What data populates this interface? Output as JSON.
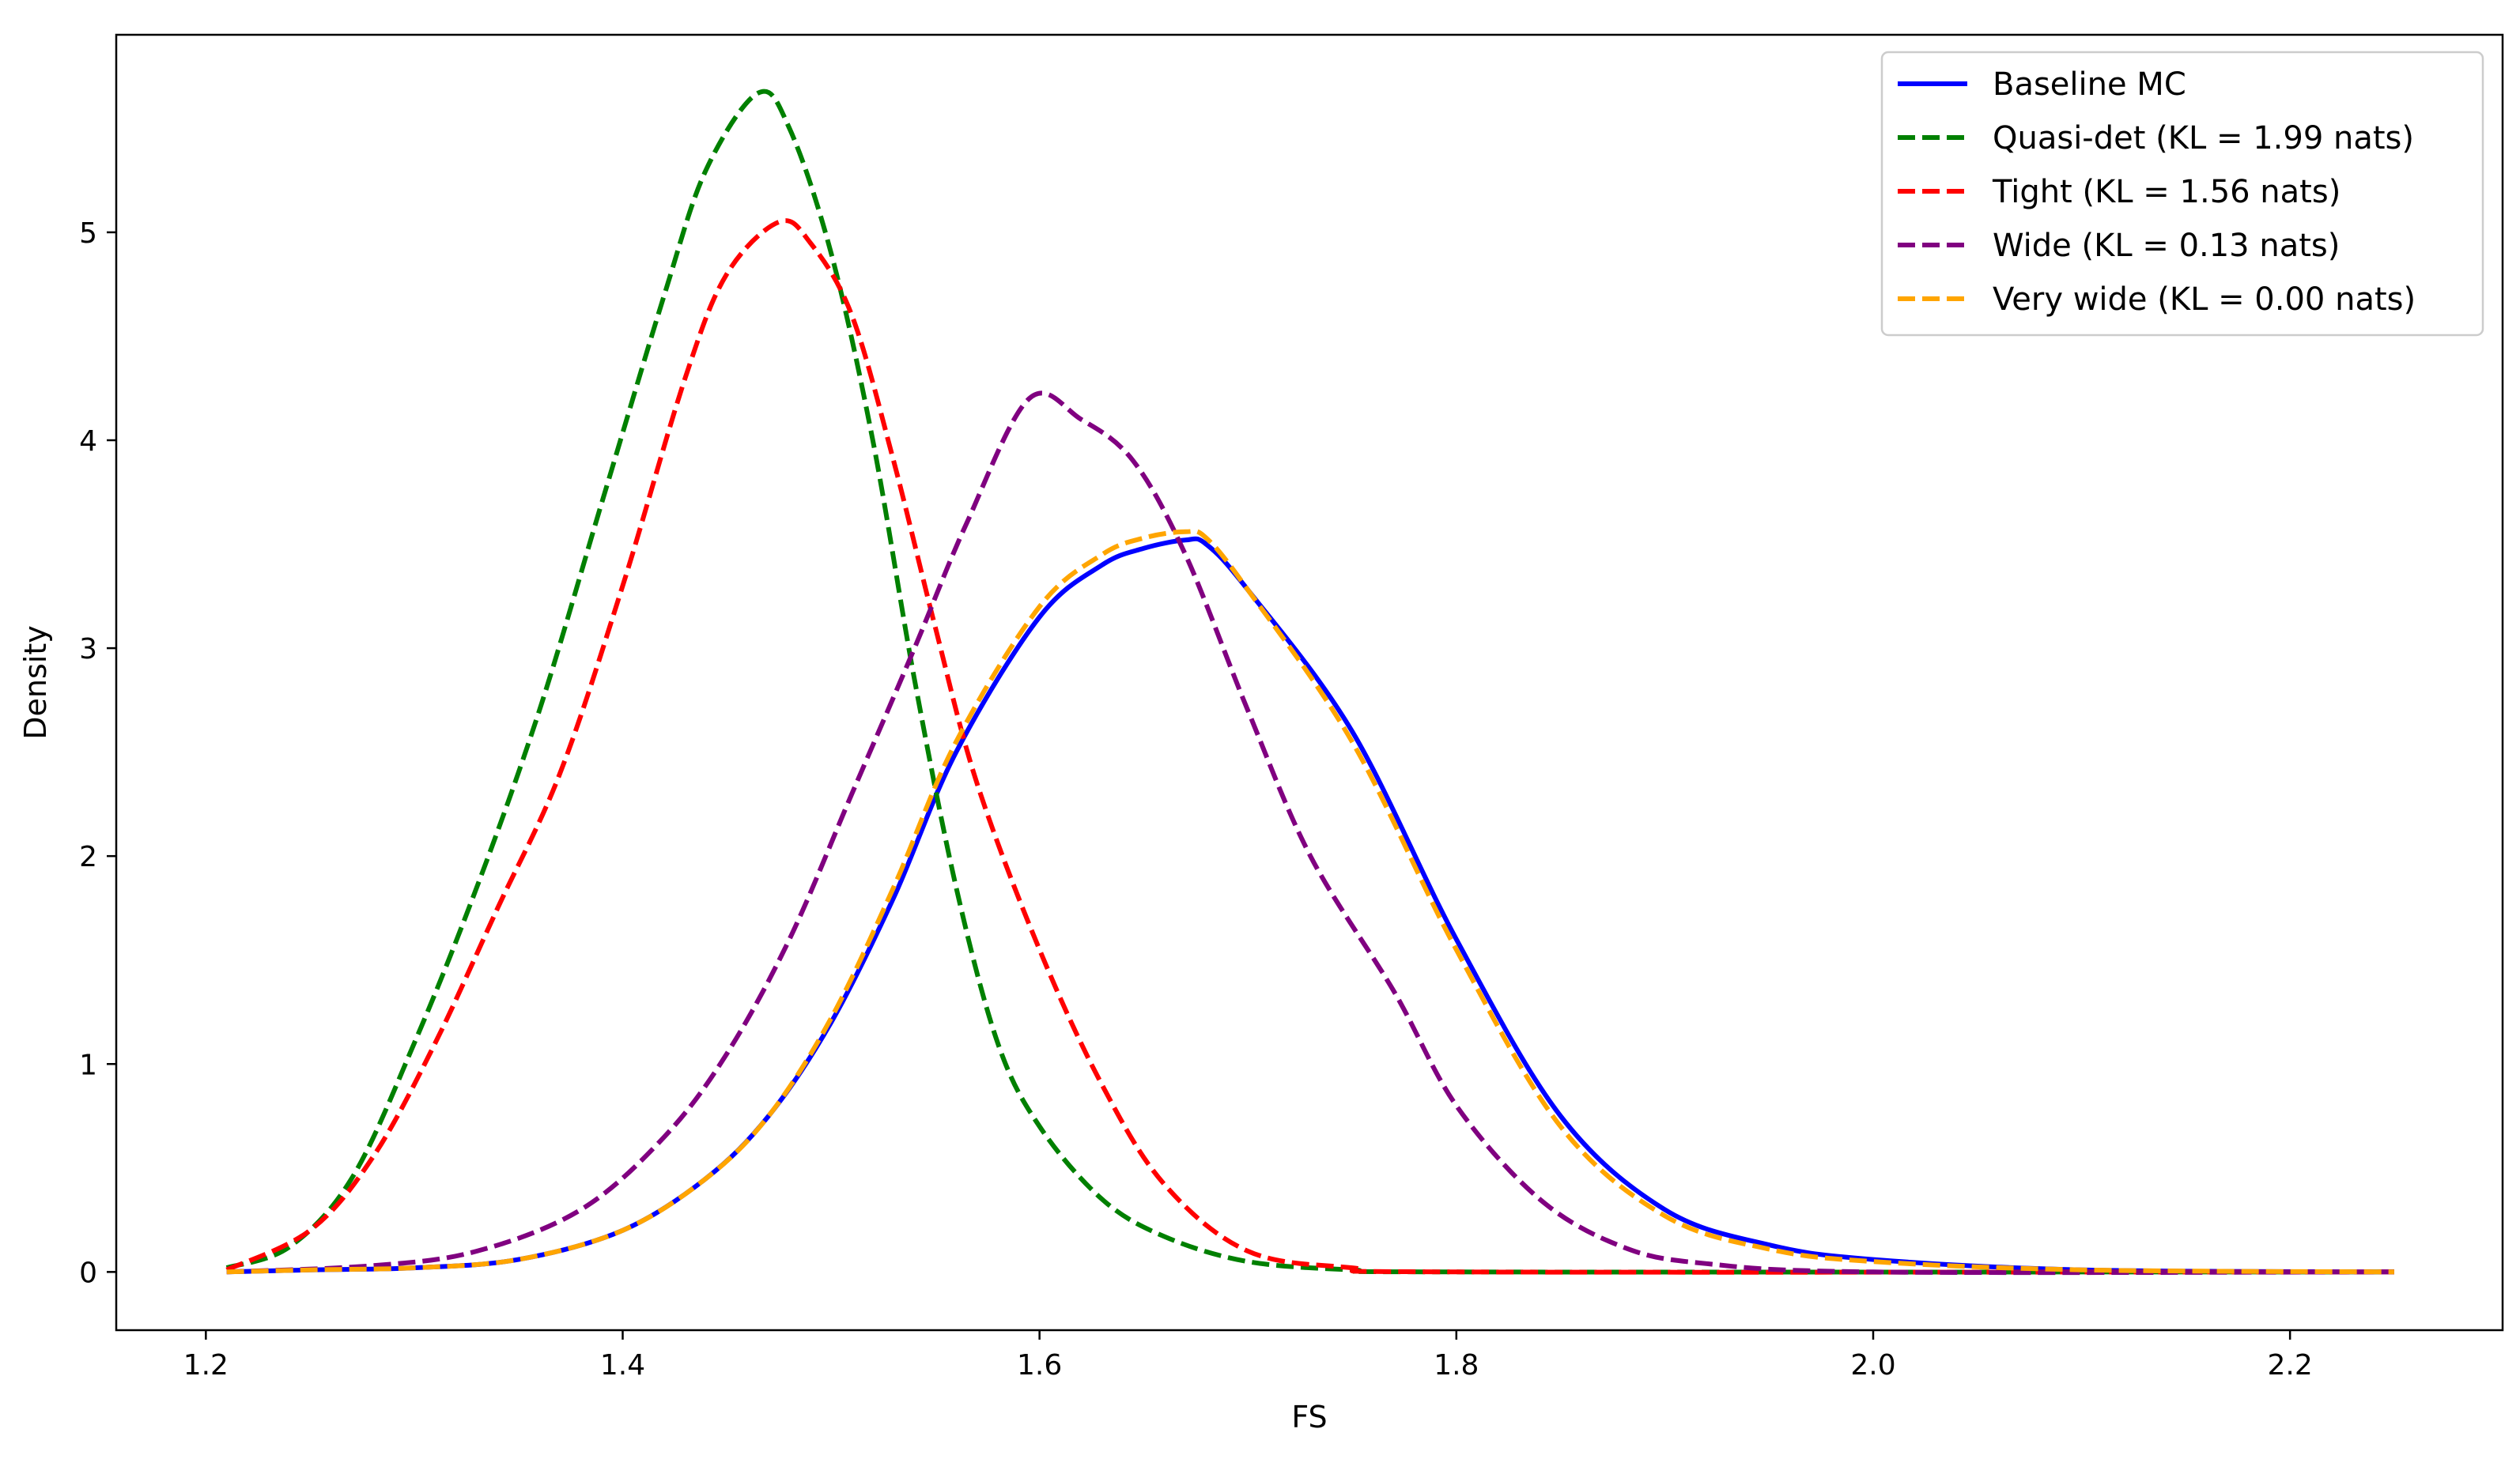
{
  "chart_data": {
    "type": "line",
    "title": "",
    "xlabel": "FS",
    "ylabel": "Density",
    "xlim": [
      1.157,
      2.302
    ],
    "ylim": [
      -0.28,
      5.95
    ],
    "xticks": [
      1.2,
      1.4,
      1.6,
      1.8,
      2.0,
      2.2
    ],
    "yticks": [
      0,
      1,
      2,
      3,
      4,
      5
    ],
    "xtick_labels": [
      "1.2",
      "1.4",
      "1.6",
      "1.8",
      "2.0",
      "2.2"
    ],
    "ytick_labels": [
      "0",
      "1",
      "2",
      "3",
      "4",
      "5"
    ],
    "grid": false,
    "legend_position": "top-right",
    "series": [
      {
        "name": "Baseline MC",
        "color": "#0000ff",
        "style": "solid",
        "x": [
          1.21,
          1.25,
          1.3,
          1.35,
          1.4,
          1.44,
          1.47,
          1.5,
          1.53,
          1.56,
          1.6,
          1.63,
          1.65,
          1.67,
          1.68,
          1.7,
          1.75,
          1.8,
          1.85,
          1.9,
          1.95,
          2.0,
          2.1,
          2.25
        ],
        "y": [
          0.0,
          0.01,
          0.02,
          0.06,
          0.2,
          0.45,
          0.75,
          1.2,
          1.8,
          2.5,
          3.15,
          3.4,
          3.48,
          3.52,
          3.5,
          3.28,
          2.6,
          1.6,
          0.75,
          0.3,
          0.13,
          0.06,
          0.01,
          0.0
        ]
      },
      {
        "name": "Quasi-det (KL = 1.99 nats)",
        "color": "#008000",
        "style": "dashed",
        "x": [
          1.21,
          1.24,
          1.27,
          1.3,
          1.33,
          1.36,
          1.39,
          1.42,
          1.44,
          1.465,
          1.48,
          1.5,
          1.52,
          1.54,
          1.56,
          1.58,
          1.6,
          1.63,
          1.66,
          1.7,
          1.75,
          1.8,
          2.25
        ],
        "y": [
          0.02,
          0.12,
          0.45,
          1.1,
          1.85,
          2.7,
          3.7,
          4.7,
          5.3,
          5.67,
          5.5,
          4.9,
          4.0,
          2.85,
          1.85,
          1.1,
          0.7,
          0.35,
          0.17,
          0.05,
          0.01,
          0.0,
          0.0
        ]
      },
      {
        "name": "Tight (KL = 1.56 nats)",
        "color": "#ff0000",
        "style": "dashed",
        "x": [
          1.21,
          1.25,
          1.28,
          1.31,
          1.34,
          1.37,
          1.4,
          1.43,
          1.45,
          1.475,
          1.49,
          1.51,
          1.53,
          1.55,
          1.57,
          1.6,
          1.63,
          1.66,
          1.7,
          1.75,
          1.8,
          2.25
        ],
        "y": [
          0.01,
          0.2,
          0.55,
          1.1,
          1.75,
          2.4,
          3.3,
          4.3,
          4.8,
          5.05,
          4.95,
          4.6,
          3.9,
          3.1,
          2.35,
          1.55,
          0.9,
          0.42,
          0.1,
          0.02,
          0.0,
          0.0
        ]
      },
      {
        "name": "Wide (KL = 0.13 nats)",
        "color": "#800080",
        "style": "dashed",
        "x": [
          1.21,
          1.28,
          1.33,
          1.38,
          1.42,
          1.45,
          1.48,
          1.51,
          1.54,
          1.565,
          1.595,
          1.62,
          1.645,
          1.67,
          1.7,
          1.73,
          1.77,
          1.8,
          1.84,
          1.88,
          1.92,
          2.0,
          2.25
        ],
        "y": [
          0.0,
          0.03,
          0.1,
          0.3,
          0.65,
          1.05,
          1.6,
          2.3,
          3.0,
          3.6,
          4.2,
          4.1,
          3.9,
          3.45,
          2.7,
          2.0,
          1.35,
          0.8,
          0.35,
          0.12,
          0.04,
          0.0,
          0.0
        ]
      },
      {
        "name": "Very wide (KL = 0.00 nats)",
        "color": "#ffa500",
        "style": "dashed",
        "x": [
          1.21,
          1.25,
          1.3,
          1.35,
          1.4,
          1.44,
          1.47,
          1.5,
          1.53,
          1.56,
          1.6,
          1.63,
          1.65,
          1.67,
          1.68,
          1.7,
          1.75,
          1.8,
          1.85,
          1.9,
          1.95,
          2.0,
          2.1,
          2.25
        ],
        "y": [
          0.0,
          0.01,
          0.02,
          0.06,
          0.2,
          0.45,
          0.75,
          1.22,
          1.85,
          2.55,
          3.2,
          3.45,
          3.53,
          3.56,
          3.53,
          3.28,
          2.55,
          1.55,
          0.7,
          0.27,
          0.11,
          0.05,
          0.01,
          0.0
        ]
      }
    ]
  }
}
